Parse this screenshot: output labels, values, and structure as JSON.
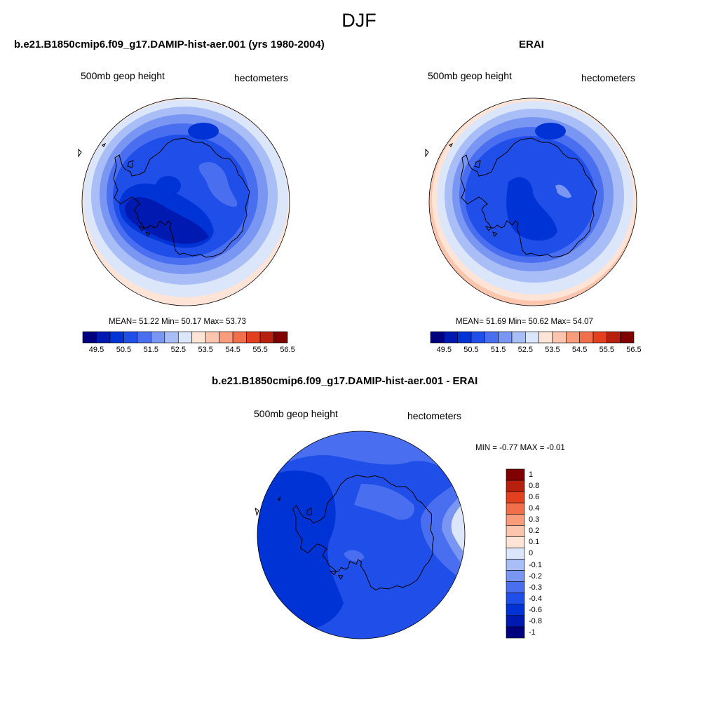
{
  "page": {
    "title": "DJF"
  },
  "panels": [
    {
      "title": "b.e21.B1850cmip6.f09_g17.DAMIP-hist-aer.001 (yrs 1980-2004)",
      "variable": "500mb geop height",
      "units": "hectometers",
      "stats_text": "MEAN=  51.22  Min=  50.17  Max=  53.73",
      "mean": 51.22,
      "min": 50.17,
      "max": 53.73
    },
    {
      "title": "ERAI",
      "variable": "500mb geop height",
      "units": "hectometers",
      "stats_text": "MEAN=  51.69  Min=  50.62  Max=  54.07",
      "mean": 51.69,
      "min": 50.62,
      "max": 54.07
    },
    {
      "title": "b.e21.B1850cmip6.f09_g17.DAMIP-hist-aer.001 - ERAI",
      "variable": "500mb geop height",
      "units": "hectometers",
      "stats_text": "MIN =  -0.77 MAX =  -0.01",
      "min": -0.77,
      "max": -0.01
    }
  ],
  "colorbars": {
    "field": {
      "tick_labels": [
        "49.5",
        "50.5",
        "51.5",
        "52.5",
        "53.5",
        "54.5",
        "55.5",
        "56.5"
      ],
      "colors": [
        "#00007f",
        "#0019b0",
        "#0033d6",
        "#1f4fe8",
        "#4a6ef0",
        "#7a96f3",
        "#a9bdf6",
        "#dce6fb",
        "#fde4d6",
        "#fbc6ad",
        "#f89c7b",
        "#f26f4b",
        "#e2401e",
        "#b8200e",
        "#800000"
      ]
    },
    "diff": {
      "tick_labels": [
        "1",
        "0.8",
        "0.6",
        "0.4",
        "0.3",
        "0.2",
        "0.1",
        "0",
        "-0.1",
        "-0.2",
        "-0.3",
        "-0.4",
        "-0.6",
        "-0.8",
        "-1"
      ],
      "colors": [
        "#800000",
        "#b8200e",
        "#e2401e",
        "#f26f4b",
        "#f89c7b",
        "#fbc6ad",
        "#fde4d6",
        "#dce6fb",
        "#a9bdf6",
        "#7a96f3",
        "#4a6ef0",
        "#1f4fe8",
        "#0033d6",
        "#0019b0",
        "#00007f"
      ]
    }
  }
}
